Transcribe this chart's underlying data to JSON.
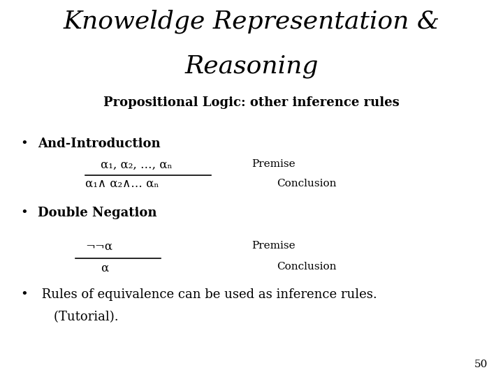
{
  "title_line1": "Knoweldge Representation &",
  "title_line2": "Reasoning",
  "subtitle": "Propositional Logic: other inference rules",
  "bg_color": "#ffffff",
  "title_fontsize": 26,
  "subtitle_fontsize": 13,
  "bullet1_header": "And-Introduction",
  "bullet1_premise_text": "α₁, α₂, …, αₙ",
  "bullet1_premise_label": "Premise",
  "bullet1_conclusion_text": "α₁∧ α₂∧… αₙ",
  "bullet1_conclusion_label": "Conclusion",
  "bullet2_header": "Double Negation",
  "bullet2_premise_text": "¬¬α",
  "bullet2_premise_label": "Premise",
  "bullet2_conclusion_text": "α",
  "bullet2_conclusion_label": "Conclusion",
  "bullet3_line1": " Rules of equivalence can be used as inference rules.",
  "bullet3_line2": "    (Tutorial).",
  "page_number": "50",
  "text_color": "#000000",
  "line_color": "#000000"
}
